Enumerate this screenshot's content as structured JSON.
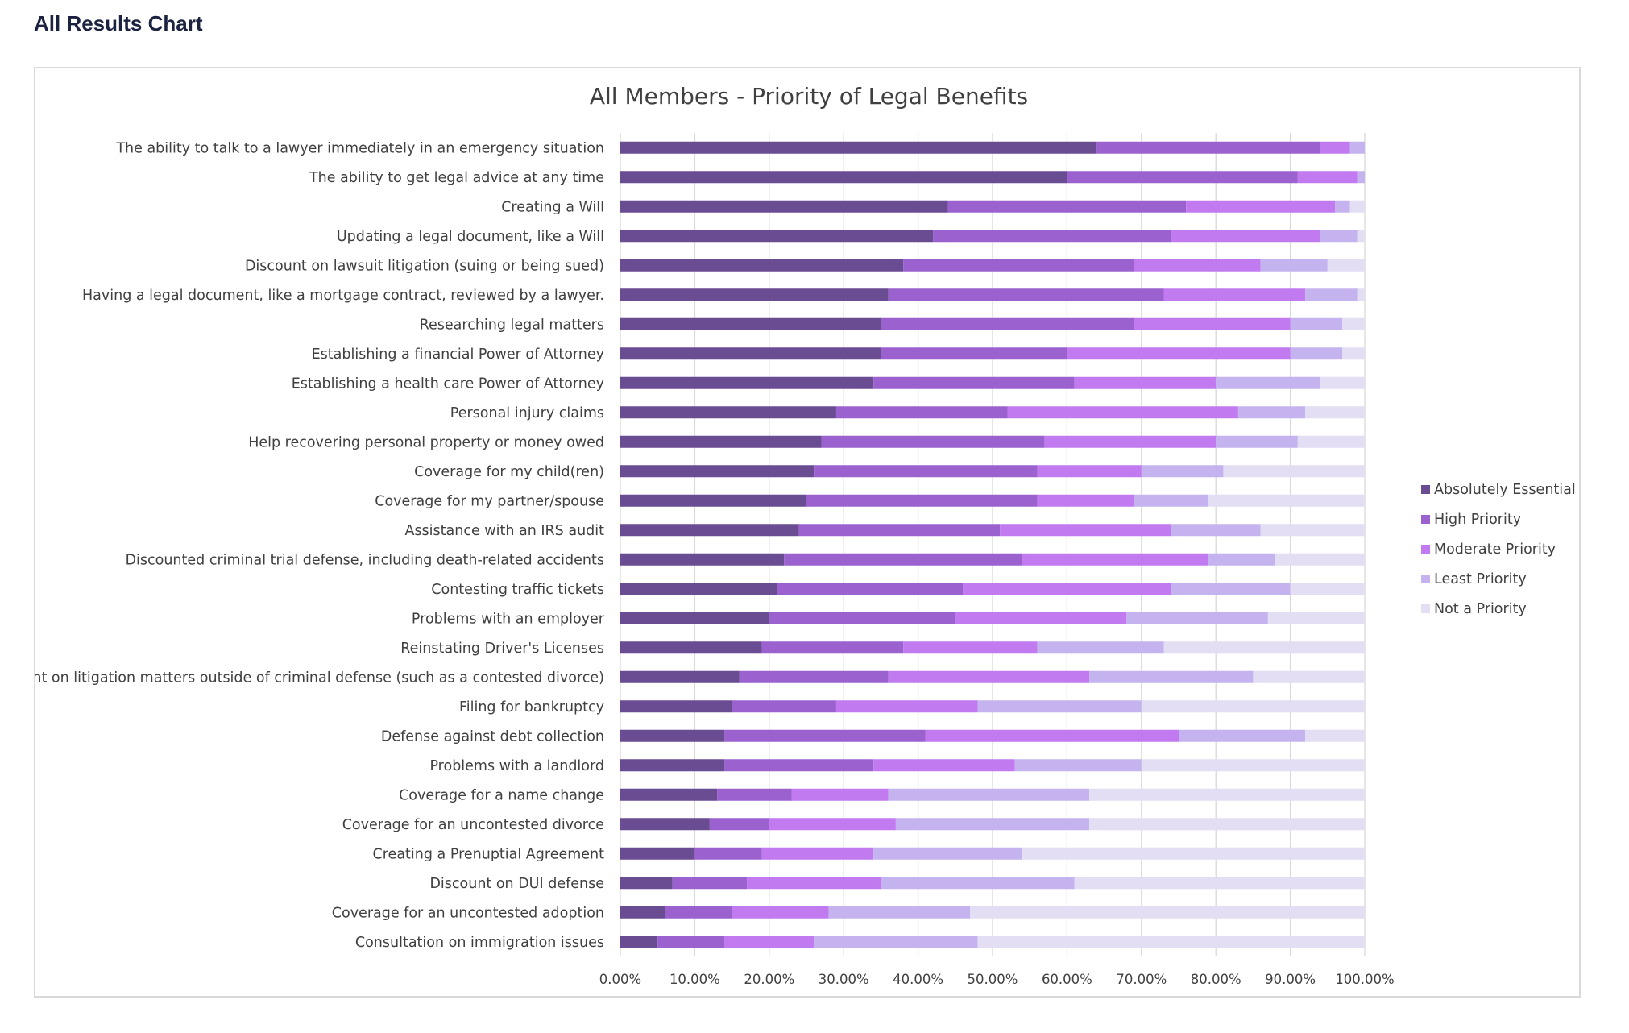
{
  "page": {
    "title": "All Results Chart"
  },
  "chart_data": {
    "type": "bar",
    "orientation": "horizontal",
    "stacked": true,
    "title": "All Members  - Priority of Legal Benefits",
    "xlabel": "",
    "ylabel": "",
    "xlim": [
      0,
      1
    ],
    "x_ticks": [
      "0.00%",
      "10.00%",
      "20.00%",
      "30.00%",
      "40.00%",
      "50.00%",
      "60.00%",
      "70.00%",
      "80.00%",
      "90.00%",
      "100.00%"
    ],
    "grid": true,
    "legend_position": "right",
    "categories": [
      "The ability to talk to a lawyer immediately in an emergency situation",
      "The ability to get legal advice at any time",
      "Creating a Will",
      "Updating a legal document, like a Will",
      "Discount on lawsuit litigation (suing or being sued)",
      "Having a legal document, like a mortgage contract, reviewed by a lawyer.",
      "Researching legal matters",
      "Establishing a financial Power of Attorney",
      "Establishing a health care Power of Attorney",
      "Personal injury claims",
      "Help recovering personal property or money owed",
      "Coverage for my child(ren)",
      "Coverage for my partner/spouse",
      "Assistance with an IRS audit",
      "Discounted criminal trial defense, including death-related accidents",
      "Contesting traffic tickets",
      "Problems with an employer",
      "Reinstating Driver's Licenses",
      "Discount on litigation matters outside of criminal defense (such as a contested divorce)",
      "Filing for bankruptcy",
      "Defense against debt collection",
      "Problems with a landlord",
      "Coverage for a name change",
      "Coverage for an uncontested divorce",
      "Creating a Prenuptial Agreement",
      "Discount on DUI defense",
      "Coverage for an uncontested adoption",
      "Consultation on immigration issues"
    ],
    "series": [
      {
        "name": "Absolutely Essential",
        "color": "#6a4c93",
        "values": [
          0.64,
          0.6,
          0.44,
          0.42,
          0.38,
          0.36,
          0.35,
          0.35,
          0.34,
          0.29,
          0.27,
          0.26,
          0.25,
          0.24,
          0.22,
          0.21,
          0.2,
          0.19,
          0.16,
          0.15,
          0.14,
          0.14,
          0.13,
          0.12,
          0.1,
          0.07,
          0.06,
          0.05
        ]
      },
      {
        "name": "High Priority",
        "color": "#9b62cf",
        "values": [
          0.3,
          0.31,
          0.32,
          0.32,
          0.31,
          0.37,
          0.34,
          0.25,
          0.27,
          0.23,
          0.3,
          0.3,
          0.31,
          0.27,
          0.32,
          0.25,
          0.25,
          0.19,
          0.2,
          0.14,
          0.27,
          0.2,
          0.1,
          0.08,
          0.09,
          0.1,
          0.09,
          0.09
        ]
      },
      {
        "name": "Moderate Priority",
        "color": "#c27af0",
        "values": [
          0.04,
          0.08,
          0.2,
          0.2,
          0.17,
          0.19,
          0.21,
          0.3,
          0.19,
          0.31,
          0.23,
          0.14,
          0.13,
          0.23,
          0.25,
          0.28,
          0.23,
          0.18,
          0.27,
          0.19,
          0.34,
          0.19,
          0.13,
          0.17,
          0.15,
          0.18,
          0.13,
          0.12
        ]
      },
      {
        "name": "Least Priority",
        "color": "#c4b3ee",
        "values": [
          0.02,
          0.01,
          0.02,
          0.05,
          0.09,
          0.07,
          0.07,
          0.07,
          0.14,
          0.09,
          0.11,
          0.11,
          0.1,
          0.12,
          0.09,
          0.16,
          0.19,
          0.17,
          0.22,
          0.22,
          0.17,
          0.17,
          0.27,
          0.26,
          0.2,
          0.26,
          0.19,
          0.22
        ]
      },
      {
        "name": "Not a Priority",
        "color": "#e3def4",
        "values": [
          0.0,
          0.0,
          0.02,
          0.01,
          0.05,
          0.01,
          0.03,
          0.03,
          0.06,
          0.08,
          0.09,
          0.19,
          0.21,
          0.14,
          0.12,
          0.1,
          0.13,
          0.27,
          0.15,
          0.3,
          0.08,
          0.3,
          0.37,
          0.37,
          0.46,
          0.39,
          0.53,
          0.52
        ]
      }
    ]
  }
}
